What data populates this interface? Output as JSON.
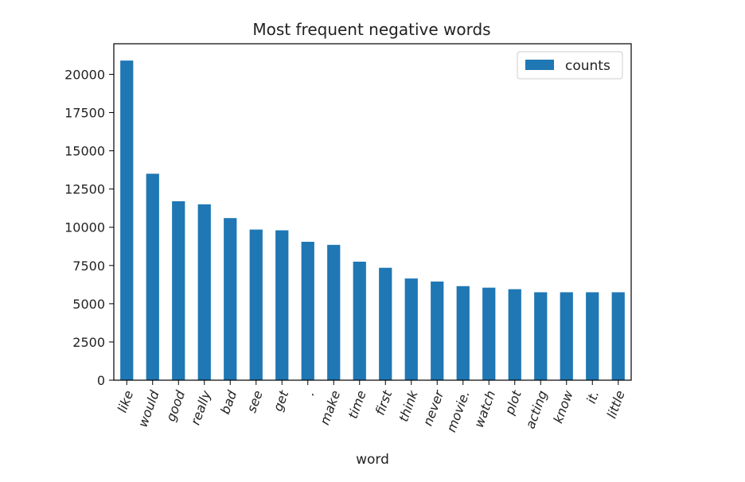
{
  "chart_data": {
    "type": "bar",
    "title": "Most frequent negative words",
    "xlabel": "word",
    "ylabel": "",
    "categories": [
      "like",
      "would",
      "good",
      "really",
      "bad",
      "see",
      "get",
      ".",
      "make",
      "time",
      "first",
      "think",
      "never",
      "movie.",
      "watch",
      "plot",
      "acting",
      "know",
      "it.",
      "little"
    ],
    "series": [
      {
        "name": "counts",
        "color": "#1f77b4",
        "values": [
          20900,
          13500,
          11700,
          11500,
          10600,
          9850,
          9800,
          9050,
          8850,
          7750,
          7350,
          6650,
          6450,
          6150,
          6050,
          5950,
          5750,
          5750,
          5750,
          5750
        ]
      }
    ],
    "ylim": [
      0,
      22000
    ],
    "yticks": [
      "0",
      "2500",
      "5000",
      "7500",
      "10000",
      "12500",
      "15000",
      "17500",
      "20000"
    ],
    "legend_position": "top-right",
    "grid": false
  }
}
